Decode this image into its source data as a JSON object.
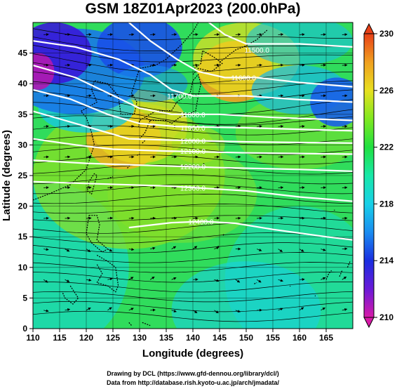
{
  "title": "GSM 18Z01Apr2023 (200.0hPa)",
  "xlabel": "Longitude (degrees)",
  "ylabel": "Latitude  (degrees)",
  "footer": {
    "line1": "Drawing by DCL (https://www.gfd-dennou.org/library/dcl/)",
    "line2": "Data from http://database.rish.kyoto-u.ac.jp/arch/jmadata/"
  },
  "chart_data": {
    "type": "heatmap",
    "xlim": [
      110,
      170
    ],
    "ylim": [
      0,
      50
    ],
    "xticks": [
      110,
      115,
      120,
      125,
      130,
      135,
      140,
      145,
      150,
      155,
      160,
      165
    ],
    "yticks": [
      0,
      5,
      10,
      15,
      20,
      25,
      30,
      35,
      40,
      45
    ],
    "grid": true,
    "colorbar": {
      "ticks": [
        210,
        214,
        218,
        222,
        226,
        230
      ],
      "min": 210,
      "max": 230,
      "colors": [
        "#d81aa8",
        "#6a1ad8",
        "#1a2ee0",
        "#1a8cf0",
        "#18d0e8",
        "#18e8a8",
        "#20e040",
        "#80e820",
        "#e8e020",
        "#f0a020",
        "#e84018"
      ]
    },
    "height_contours": [
      {
        "label": "11500.0",
        "lon": 152.0,
        "lat": 45.5
      },
      {
        "label": "11600.0",
        "lon": 149.5,
        "lat": 41.0
      },
      {
        "label": "11700.0",
        "lon": 137.5,
        "lat": 38.0
      },
      {
        "label": "11800.0",
        "lon": 140.0,
        "lat": 35.0
      },
      {
        "label": "11900.0",
        "lon": 140.0,
        "lat": 32.8
      },
      {
        "label": "12000.0",
        "lon": 140.0,
        "lat": 30.7
      },
      {
        "label": "12100.0",
        "lon": 140.0,
        "lat": 29.0
      },
      {
        "label": "12200.0",
        "lon": 140.0,
        "lat": 26.5
      },
      {
        "label": "12300.0",
        "lon": 140.0,
        "lat": 23.0
      },
      {
        "label": "12400.0",
        "lon": 141.5,
        "lat": 17.5
      }
    ],
    "colors": {
      "contour": "#ffffff",
      "streamline": "#000000",
      "coast": "#000000"
    }
  }
}
